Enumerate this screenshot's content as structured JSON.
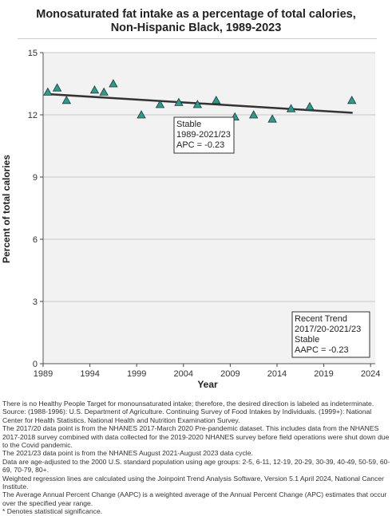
{
  "title_line1": "Monosaturated fat intake as a percentage of total calories,",
  "title_line2": "Non-Hispanic Black,  1989-2023",
  "colors": {
    "plot_bg": "#f2f2f2",
    "grid": "#c8c8c8",
    "marker_fill": "#2e9a8e",
    "marker_stroke": "#1e3a38",
    "trend_line": "#333333"
  },
  "chart_data": {
    "type": "scatter",
    "xlabel": "Year",
    "ylabel": "Percent of total calories",
    "xlim": [
      1989,
      2024.5
    ],
    "ylim": [
      0,
      15
    ],
    "xticks": [
      1989,
      1994,
      1999,
      2004,
      2009,
      2014,
      2019,
      2024
    ],
    "yticks": [
      0,
      3,
      6,
      9,
      12,
      15
    ],
    "grid": true,
    "series": [
      {
        "marker": "triangle",
        "x": [
          1989.5,
          1990.5,
          1991.5,
          1994.5,
          1995.5,
          1996.5,
          1999.5,
          2001.5,
          2003.5,
          2005.5,
          2007.5,
          2009.5,
          2011.5,
          2013.5,
          2015.5,
          2017.5,
          2022.0
        ],
        "y": [
          13.1,
          13.3,
          12.7,
          13.2,
          13.1,
          13.5,
          12.0,
          12.5,
          12.6,
          12.5,
          12.7,
          11.9,
          12.0,
          11.8,
          12.3,
          12.4,
          12.7
        ]
      }
    ],
    "trend": {
      "x": [
        1989.5,
        2022.0
      ],
      "y": [
        13.0,
        12.1
      ]
    },
    "annotations": [
      {
        "id": "stable",
        "lines": [
          "Stable",
          "1989-2021/23",
          "APC = -0.23"
        ]
      },
      {
        "id": "recent",
        "lines": [
          "Recent Trend",
          "2017/20-2021/23",
          "Stable",
          "AAPC = -0.23"
        ]
      }
    ]
  },
  "notes": [
    "There is no Healthy People Target for monounsaturated intake; therefore, the desired direction is labeled as indeterminate.",
    "Source: (1988-1996): U.S. Department of Agriculture. Continuing Survey of Food Intakes by Individuals. (1999+): National Center for Health Statistics. National Health and Nutrition Examination Survey.",
    "The 2017/20 data point is from the NHANES 2017-March 2020 Pre-pandemic dataset. This includes data from the NHANES 2017-2018 survey combined with data collected for the 2019-2020 NHANES survey before field operations were shut down due to the Covid pandemic.",
    "The 2021/23 data point is from the NHANES August 2021-August 2023 data cycle.",
    "Data are age-adjusted to the 2000 U.S. standard population using age groups: 2-5, 6-11, 12-19, 20-29, 30-39, 40-49, 50-59, 60-69, 70-79, 80+.",
    "Weighted regression lines are calculated using the Joinpoint Trend Analysis Software, Version 5.1 April 2024, National Cancer Institute.",
    "The Average Annual Percent Change (AAPC) is a weighted average of the Annual Percent Change (APC) estimates that occur over the specified year range.",
    "* Denotes statistical significance."
  ]
}
